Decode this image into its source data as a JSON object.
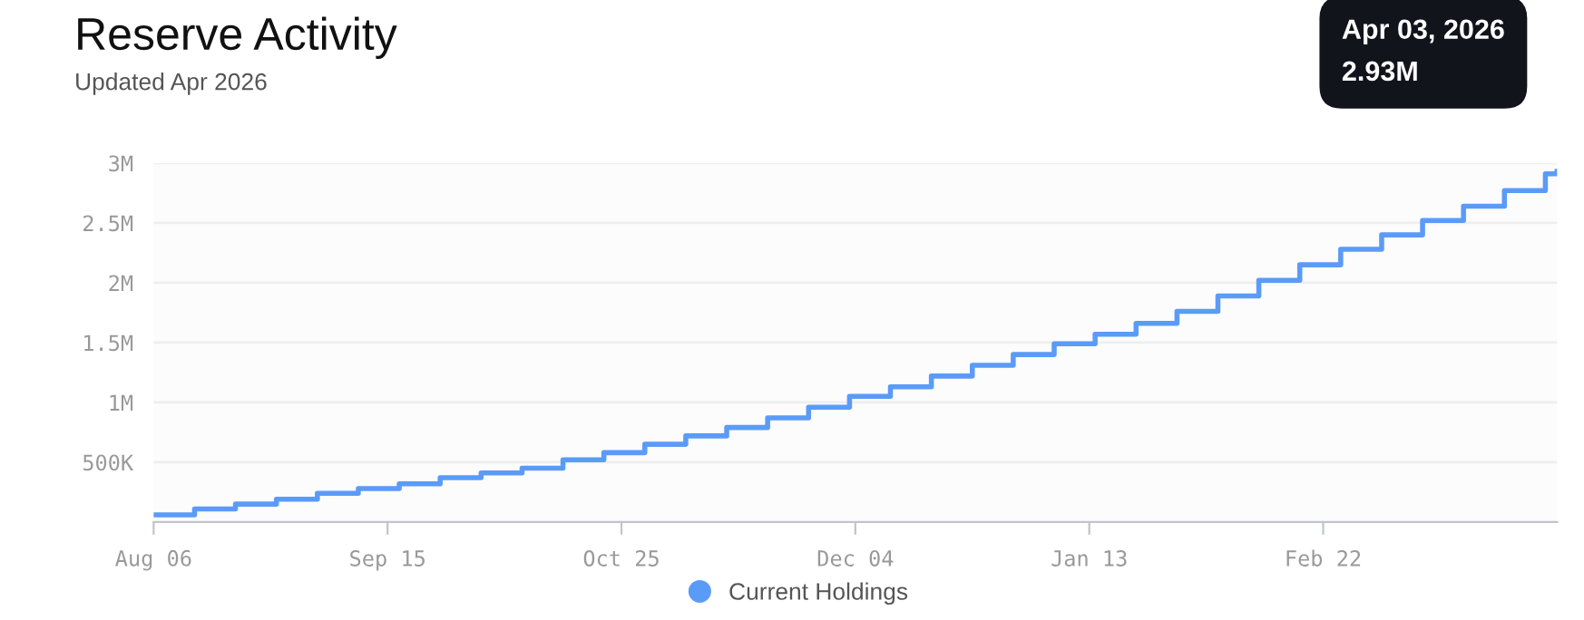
{
  "chart_data": {
    "type": "step",
    "title": "Reserve Activity",
    "subtitle": "Updated Apr 2026",
    "x": [
      "2025-08-06",
      "2025-08-13",
      "2025-08-20",
      "2025-08-27",
      "2025-09-03",
      "2025-09-10",
      "2025-09-17",
      "2025-09-24",
      "2025-10-01",
      "2025-10-08",
      "2025-10-15",
      "2025-10-22",
      "2025-10-29",
      "2025-11-05",
      "2025-11-12",
      "2025-11-19",
      "2025-11-26",
      "2025-12-03",
      "2025-12-10",
      "2025-12-17",
      "2025-12-24",
      "2025-12-31",
      "2026-01-07",
      "2026-01-14",
      "2026-01-21",
      "2026-01-28",
      "2026-02-04",
      "2026-02-11",
      "2026-02-18",
      "2026-02-25",
      "2026-03-04",
      "2026-03-11",
      "2026-03-18",
      "2026-03-25",
      "2026-04-01",
      "2026-04-03"
    ],
    "series": [
      {
        "name": "Current Holdings",
        "color": "#5b9bf8",
        "values": [
          60000,
          110000,
          150000,
          190000,
          240000,
          280000,
          320000,
          370000,
          410000,
          450000,
          520000,
          580000,
          650000,
          720000,
          790000,
          870000,
          960000,
          1050000,
          1130000,
          1220000,
          1310000,
          1400000,
          1490000,
          1570000,
          1660000,
          1760000,
          1890000,
          2020000,
          2150000,
          2280000,
          2400000,
          2520000,
          2640000,
          2770000,
          2910000,
          2930000
        ]
      }
    ],
    "xlim": [
      "2025-08-06",
      "2026-04-03"
    ],
    "xticks": [
      {
        "value": "2025-08-06",
        "label": "Aug 06"
      },
      {
        "value": "2025-09-15",
        "label": "Sep 15"
      },
      {
        "value": "2025-10-25",
        "label": "Oct 25"
      },
      {
        "value": "2025-12-04",
        "label": "Dec 04"
      },
      {
        "value": "2026-01-13",
        "label": "Jan 13"
      },
      {
        "value": "2026-02-22",
        "label": "Feb 22"
      }
    ],
    "ylim": [
      0,
      3000000
    ],
    "yticks": [
      {
        "value": 500000,
        "label": "500K"
      },
      {
        "value": 1000000,
        "label": "1M"
      },
      {
        "value": 1500000,
        "label": "1.5M"
      },
      {
        "value": 2000000,
        "label": "2M"
      },
      {
        "value": 2500000,
        "label": "2.5M"
      },
      {
        "value": 3000000,
        "label": "3M"
      }
    ],
    "grid": "y",
    "legend": "bottom",
    "line_style": "solid",
    "annotations": [
      "Apr 03, 2026\n2.93M"
    ]
  }
}
